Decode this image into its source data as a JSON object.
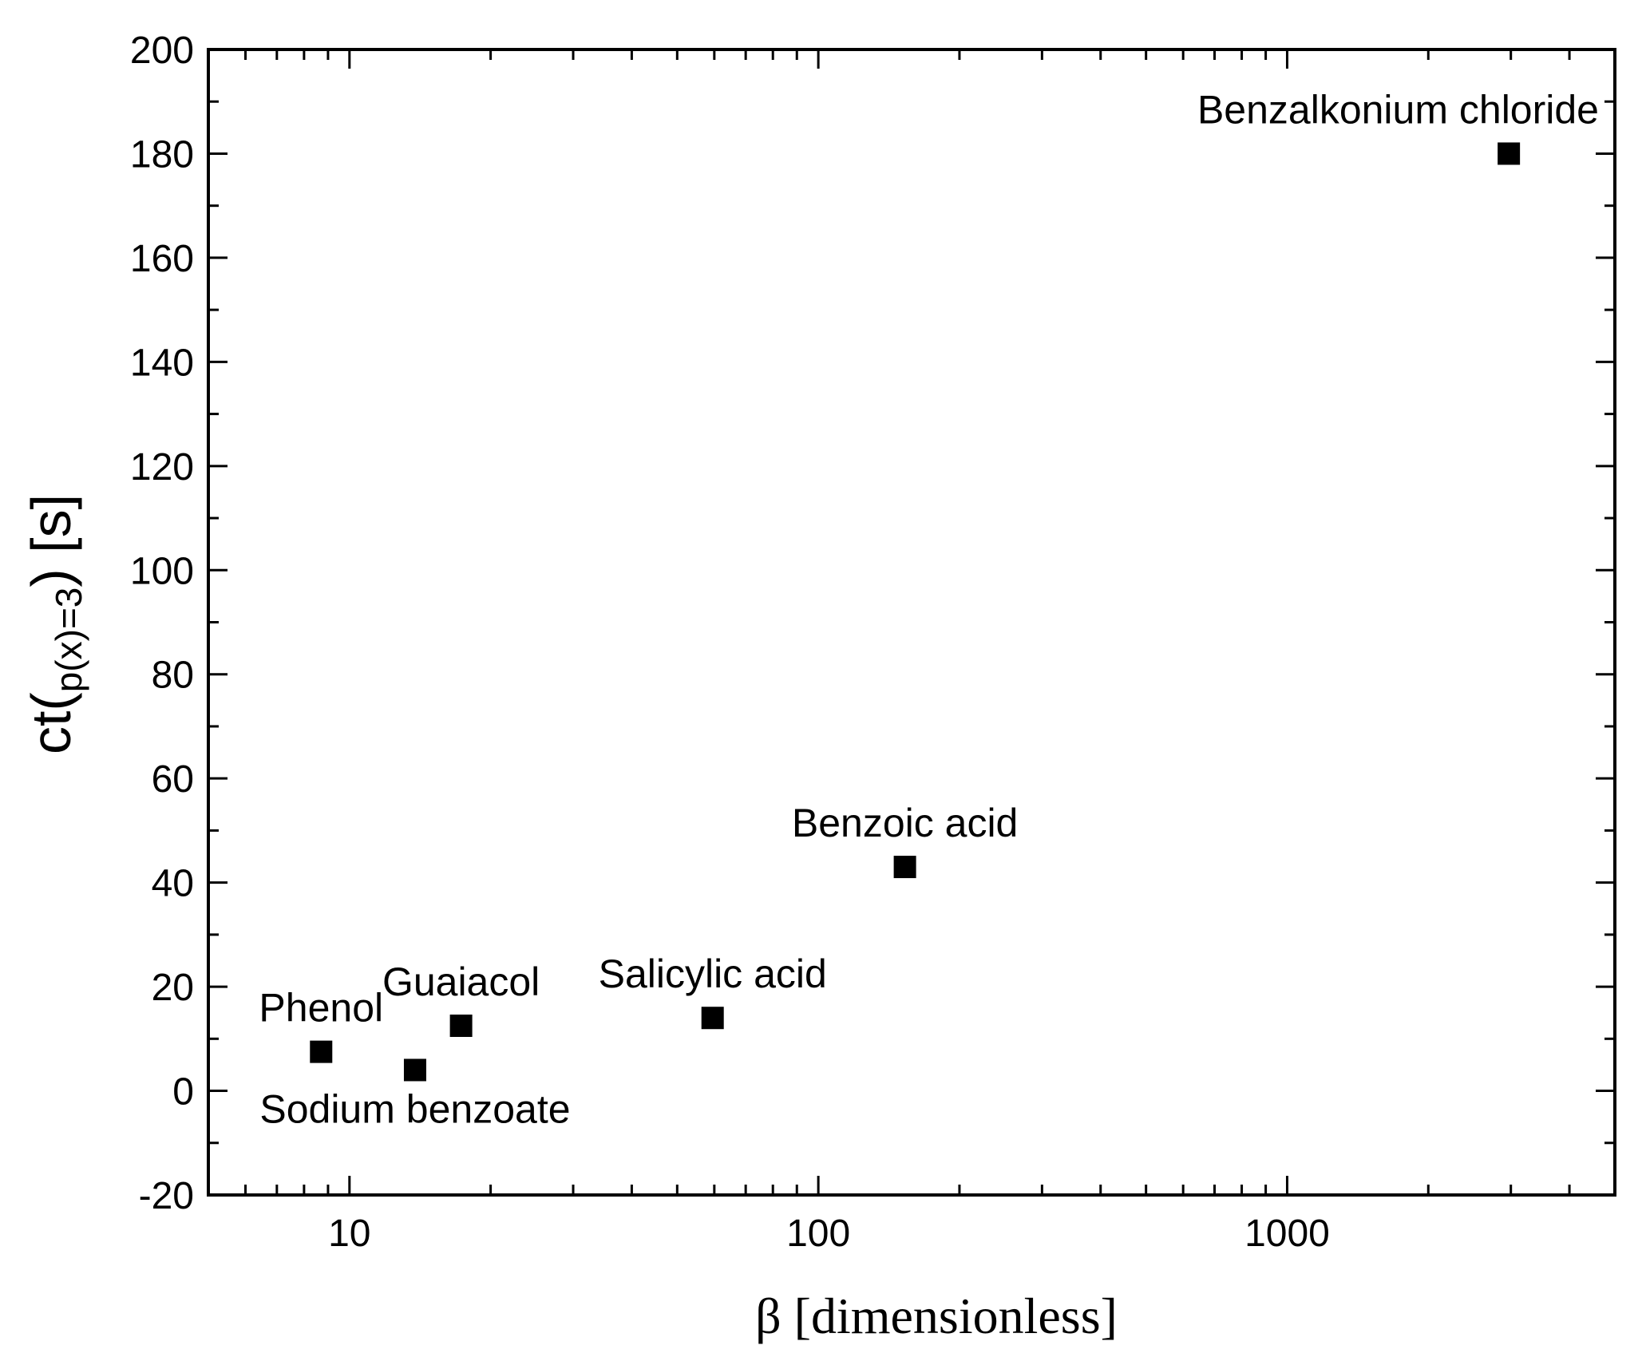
{
  "chart_data": {
    "type": "scatter",
    "title": "",
    "xlabel": "β [dimensionless]",
    "ylabel": {
      "prefix": "ct(",
      "subscript": "p(x)=3",
      "suffix": ") [s]"
    },
    "xscale": "log",
    "xlim": [
      5,
      5000
    ],
    "ylim": [
      -20,
      200
    ],
    "x_ticks": [
      10,
      100,
      1000
    ],
    "x_tick_labels": [
      "10",
      "100",
      "1000"
    ],
    "y_ticks": [
      -20,
      0,
      20,
      40,
      60,
      80,
      100,
      120,
      140,
      160,
      180,
      200
    ],
    "y_tick_labels": [
      "-20",
      "0",
      "20",
      "40",
      "60",
      "80",
      "100",
      "120",
      "140",
      "160",
      "180",
      "200"
    ],
    "grid": false,
    "marker": "filled-square",
    "marker_color": "#000000",
    "points": [
      {
        "label": "Phenol",
        "x": 8.7,
        "y": 7.5,
        "label_position": "above"
      },
      {
        "label": "Sodium benzoate",
        "x": 13.8,
        "y": 4.0,
        "label_position": "below"
      },
      {
        "label": "Guaiacol",
        "x": 17.3,
        "y": 12.5,
        "label_position": "above"
      },
      {
        "label": "Salicylic acid",
        "x": 59.5,
        "y": 14.0,
        "label_position": "above"
      },
      {
        "label": "Benzoic acid",
        "x": 153,
        "y": 43.0,
        "label_position": "above"
      },
      {
        "label": "Benzalkonium chloride",
        "x": 2970,
        "y": 180.0,
        "label_position": "above"
      }
    ]
  }
}
